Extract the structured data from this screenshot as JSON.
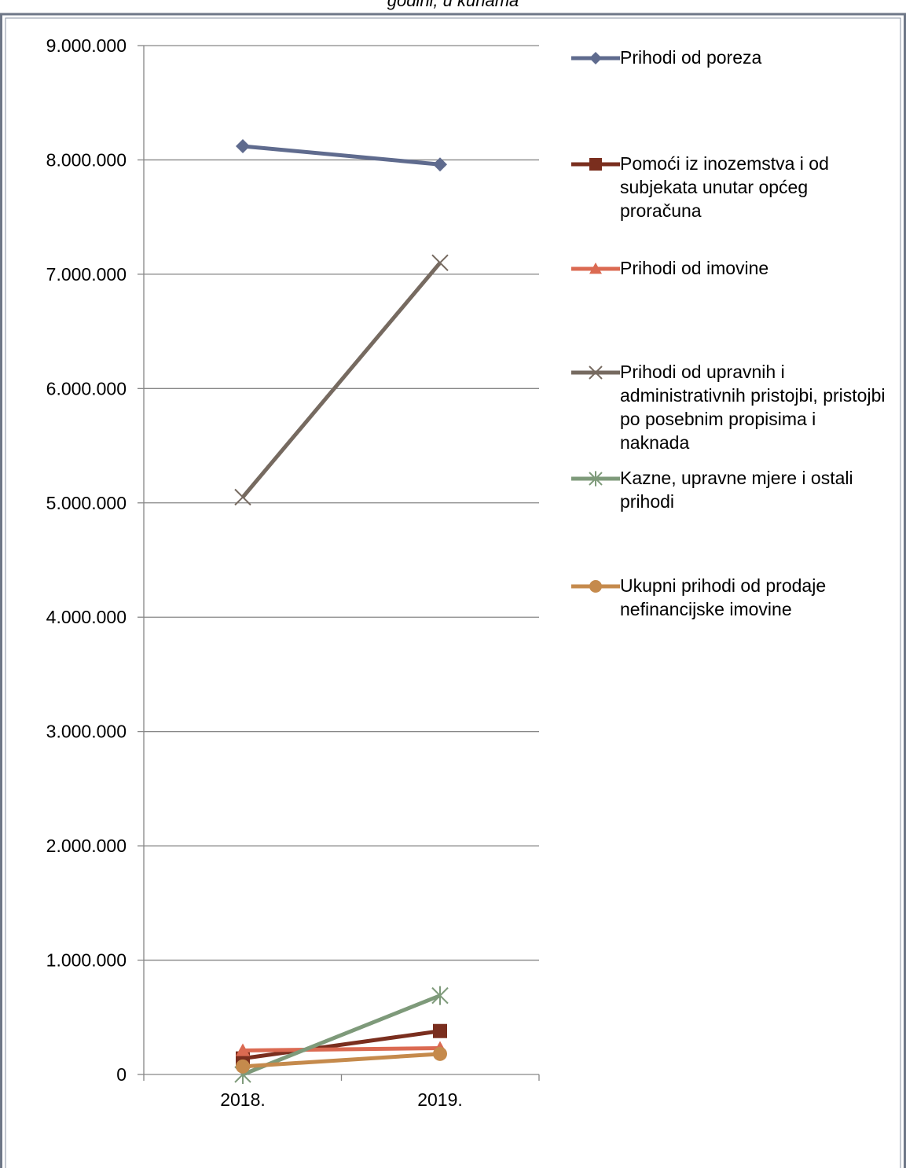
{
  "chart_data": {
    "type": "line",
    "title": "godini, u kunama",
    "categories": [
      "2018.",
      "2019."
    ],
    "ylim": [
      0,
      9000000
    ],
    "yticks": [
      0,
      1000000,
      2000000,
      3000000,
      4000000,
      5000000,
      6000000,
      7000000,
      8000000,
      9000000
    ],
    "ytick_labels": [
      "0",
      "1.000.000",
      "2.000.000",
      "3.000.000",
      "4.000.000",
      "5.000.000",
      "6.000.000",
      "7.000.000",
      "8.000.000",
      "9.000.000"
    ],
    "grid": true,
    "legend_position": "right",
    "series": [
      {
        "name": "Prihodi od poreza",
        "values": [
          8120000,
          7960000
        ],
        "color": "#5F6B8E",
        "marker": "diamond"
      },
      {
        "name": "Pomoći iz inozemstva i od subjekata unutar općeg proračuna",
        "values": [
          140000,
          380000
        ],
        "color": "#7A2E1E",
        "marker": "square"
      },
      {
        "name": "Prihodi od imovine",
        "values": [
          210000,
          230000
        ],
        "color": "#DB6A52",
        "marker": "triangle"
      },
      {
        "name": "Prihodi od upravnih i administrativnih pristojbi, pristojbi po posebnim propisima i naknada",
        "values": [
          5050000,
          7100000
        ],
        "color": "#766A60",
        "marker": "x"
      },
      {
        "name": "Kazne, upravne mjere i ostali prihodi",
        "values": [
          0,
          690000
        ],
        "color": "#7E9A7A",
        "marker": "star"
      },
      {
        "name": "Ukupni prihodi od prodaje nefinancijske imovine",
        "values": [
          70000,
          180000
        ],
        "color": "#C58A4C",
        "marker": "circle"
      }
    ]
  }
}
